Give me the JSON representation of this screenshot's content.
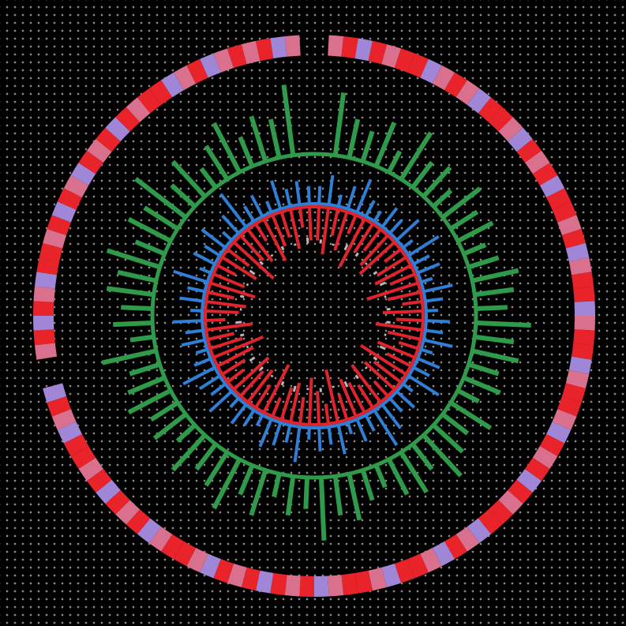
{
  "chart_data": {
    "type": "circular",
    "outer_ring": {
      "palette": [
        "#e8242a",
        "#d8708e",
        "#9f86d6"
      ],
      "values": [
        null,
        1,
        0,
        2,
        0,
        1,
        0,
        0,
        2,
        1,
        0,
        1,
        2,
        0,
        0,
        1,
        2,
        0,
        1,
        0,
        2,
        0,
        0,
        1,
        0,
        2,
        1,
        0,
        0,
        2,
        1,
        0,
        0,
        2,
        1,
        0,
        0,
        1,
        2,
        0,
        1,
        0,
        2,
        0,
        1,
        0,
        0,
        2,
        1,
        0,
        2,
        1,
        0,
        0,
        2,
        1,
        0,
        0,
        1,
        2,
        0,
        1,
        0,
        2,
        0,
        1,
        0,
        2,
        1,
        0,
        0,
        1,
        2,
        0,
        1,
        0,
        2,
        0,
        1,
        0,
        0,
        2,
        1,
        0,
        2,
        null,
        null,
        1,
        0,
        2,
        0,
        1,
        2,
        0,
        0,
        1,
        0,
        2,
        0,
        1,
        2,
        0,
        1,
        0,
        2,
        0,
        1,
        0,
        0,
        2,
        1,
        0,
        2,
        1,
        0,
        1,
        0,
        2,
        1,
        null
      ]
    },
    "rlim": [
      0,
      10
    ],
    "series": [
      {
        "color": "#2e9a4a",
        "values": [
          null,
          8,
          5,
          4,
          6,
          3,
          7,
          4,
          5,
          3,
          6,
          4,
          5,
          3,
          4,
          6,
          5,
          4,
          7,
          5,
          6,
          4,
          5,
          3,
          6,
          4,
          5,
          7,
          4,
          6,
          5,
          3,
          4,
          6,
          5,
          8,
          4,
          5,
          3,
          6,
          4,
          7,
          5,
          4,
          6,
          3,
          5,
          4,
          6,
          5,
          4,
          7,
          3,
          5,
          4,
          6,
          5,
          7,
          4,
          6,
          5,
          8,
          4,
          6,
          3,
          5,
          7,
          4,
          6,
          5,
          9,
          null
        ]
      },
      {
        "color": "#2f7fd6",
        "values": [
          3,
          5,
          2,
          4,
          6,
          3,
          2,
          4,
          3,
          5,
          2,
          6,
          3,
          4,
          2,
          5,
          3,
          2,
          4,
          3,
          5,
          2,
          4,
          3,
          6,
          2,
          4,
          3,
          5,
          7,
          3,
          4,
          2,
          5,
          3,
          4,
          2,
          6,
          3,
          4,
          5,
          2,
          3,
          4,
          2,
          5,
          3,
          4,
          6,
          3,
          2,
          4,
          3,
          5,
          2,
          4,
          3,
          6,
          2,
          4,
          3,
          5,
          2,
          4,
          7,
          3,
          4,
          2,
          5,
          3,
          4,
          3
        ]
      },
      {
        "color": "#e0242c",
        "values": [
          5,
          7,
          4,
          6,
          3,
          8,
          5,
          4,
          6,
          7,
          3,
          5,
          6,
          4,
          8,
          5,
          3,
          6,
          4,
          7,
          5,
          3,
          6,
          4,
          8,
          5,
          6,
          3,
          7,
          4,
          5,
          6,
          4,
          8,
          3,
          5,
          7,
          4,
          6,
          5,
          3,
          8,
          4,
          6,
          5,
          7,
          3,
          4,
          6,
          8,
          5,
          4,
          7,
          3,
          5,
          6,
          4,
          7,
          5,
          3,
          6,
          4,
          8,
          5,
          6,
          3,
          7,
          5,
          4,
          6,
          3,
          5
        ]
      },
      {
        "color": "#b8b8b8",
        "values": [
          2,
          1,
          3,
          2,
          1,
          2,
          3,
          1,
          2,
          2,
          1,
          3,
          2,
          1,
          2,
          3,
          1,
          2,
          1,
          3,
          2,
          1,
          2,
          3,
          1,
          2,
          3,
          1,
          2,
          1,
          3,
          2,
          1,
          2,
          1,
          3
        ]
      }
    ]
  }
}
